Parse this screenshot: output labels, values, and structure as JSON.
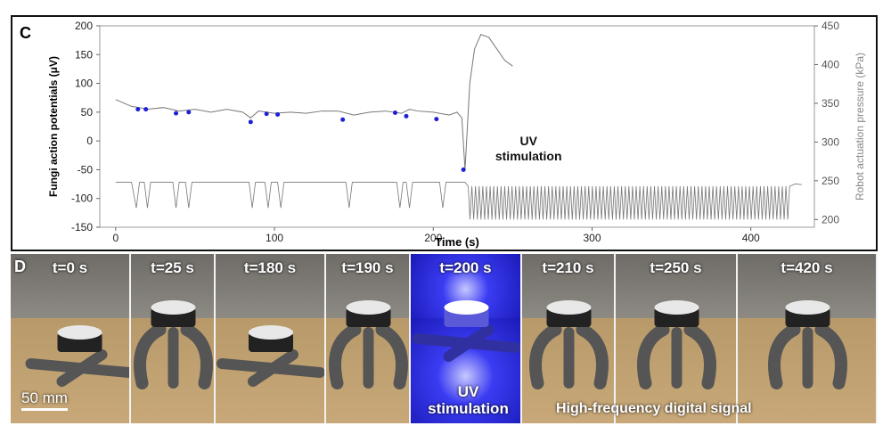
{
  "panel_c": {
    "letter": "C",
    "chart_data": {
      "type": "line",
      "xlabel": "Time (s)",
      "ylabel_left": "Fungi action potentials (μV)",
      "ylabel_right": "Robot actuation pressure (kPa)",
      "xlim": [
        -10,
        440
      ],
      "ylim_left": [
        -150,
        200
      ],
      "ylim_right": [
        190,
        450
      ],
      "x_ticks": [
        0,
        100,
        200,
        300,
        400
      ],
      "y_ticks_left": [
        -150,
        -100,
        -50,
        0,
        50,
        100,
        150,
        200
      ],
      "y_ticks_right": [
        200,
        250,
        300,
        350,
        400,
        450
      ],
      "grid": false,
      "annotation": {
        "text": "UV\nstimulation",
        "x": 260,
        "y": -20
      },
      "series": [
        {
          "color": "#777777",
          "x": [
            0,
            5,
            10,
            15,
            20,
            30,
            40,
            50,
            60,
            70,
            80,
            85,
            90,
            100,
            110,
            120,
            130,
            140,
            150,
            160,
            170,
            180,
            185,
            190,
            200,
            210,
            215,
            218,
            220,
            223,
            226,
            230,
            235,
            240,
            245,
            250
          ],
          "y": [
            72,
            66,
            60,
            58,
            55,
            58,
            52,
            55,
            50,
            55,
            50,
            40,
            52,
            48,
            50,
            48,
            52,
            52,
            45,
            50,
            52,
            48,
            55,
            52,
            50,
            45,
            50,
            40,
            -50,
            100,
            160,
            185,
            180,
            160,
            140,
            130
          ]
        },
        {
          "color": "#1f1fd6",
          "x": [
            14,
            19,
            38,
            46,
            85,
            95,
            102,
            143,
            176,
            183,
            202,
            219
          ],
          "y": [
            55,
            55,
            48,
            50,
            33,
            47,
            46,
            37,
            49,
            43,
            38,
            -50
          ]
        },
        {
          "color": "#777777",
          "axis": "right",
          "x": [
            0,
            10,
            13,
            15,
            18,
            20,
            22,
            24,
            27,
            30,
            36,
            38,
            40,
            44,
            46,
            48,
            84,
            86,
            88,
            94,
            96,
            98,
            102,
            104,
            106,
            145,
            147,
            149,
            177,
            179,
            181,
            183,
            185,
            187,
            204,
            206,
            208,
            218,
            220
          ],
          "y": [
            248,
            248,
            215,
            248,
            248,
            215,
            248,
            248,
            248,
            248,
            248,
            215,
            248,
            248,
            215,
            248,
            248,
            215,
            248,
            248,
            215,
            248,
            248,
            215,
            248,
            248,
            215,
            248,
            248,
            215,
            248,
            248,
            215,
            248,
            248,
            215,
            248,
            248,
            248
          ],
          "periodic_from": 222,
          "periodic_to": 425,
          "periodic_high": 243,
          "periodic_low": 200,
          "periodic_period": 2.3,
          "tail": [
            [
              428,
              246
            ],
            [
              432,
              245
            ]
          ]
        }
      ]
    }
  },
  "panel_d": {
    "letter": "D",
    "frames": [
      {
        "label": "t=0 s",
        "state": "flat"
      },
      {
        "label": "t=25 s",
        "state": "bent"
      },
      {
        "label": "t=180 s",
        "state": "flat"
      },
      {
        "label": "t=190 s",
        "state": "bent"
      },
      {
        "label": "t=200 s",
        "state": "uv"
      },
      {
        "label": "t=210 s",
        "state": "bent"
      },
      {
        "label": "t=250 s",
        "state": "bent"
      },
      {
        "label": "t=420 s",
        "state": "bent"
      }
    ],
    "scale_bar": "50 mm",
    "uv_label": "UV\nstimulation",
    "hf_label": "High-frequency digital signal"
  }
}
